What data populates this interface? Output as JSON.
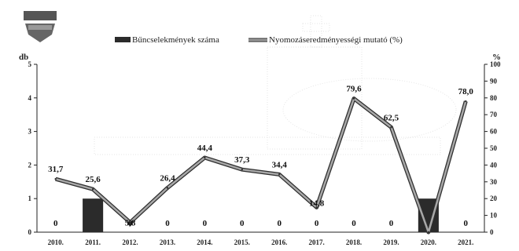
{
  "chart_data": {
    "type": "bar+line",
    "categories": [
      "2010.",
      "2011.",
      "2012.",
      "2013.",
      "2014.",
      "2015.",
      "2016.",
      "2017.",
      "2018.",
      "2019.",
      "2020.",
      "2021."
    ],
    "series": [
      {
        "name": "Bűncselekmények száma",
        "type": "bar",
        "axis": "left",
        "values": [
          0,
          1,
          0,
          0,
          0,
          0,
          0,
          0,
          0,
          0,
          1,
          0
        ],
        "labels": [
          "0",
          "",
          "0",
          "0",
          "0",
          "0",
          "0",
          "0",
          "0",
          "0",
          "",
          "0"
        ]
      },
      {
        "name": "Nyomozáseredményességi mutató (%)",
        "type": "line",
        "axis": "right",
        "values": [
          31.7,
          25.6,
          5.8,
          26.4,
          44.4,
          37.3,
          34.4,
          14.8,
          79.6,
          62.5,
          0,
          78.0
        ],
        "labels": [
          "31,7",
          "25,6",
          "5,8",
          "26,4",
          "44,4",
          "37,3",
          "34,4",
          "14,8",
          "79,6",
          "62,5",
          "",
          "78,0"
        ]
      }
    ],
    "left_axis": {
      "unit": "db",
      "ylim": [
        0,
        5
      ],
      "ticks": [
        "0",
        "1",
        "2",
        "3",
        "4",
        "5"
      ]
    },
    "right_axis": {
      "unit": "%",
      "ylim": [
        0,
        100
      ],
      "ticks": [
        "0",
        "10",
        "20",
        "30",
        "40",
        "50",
        "60",
        "70",
        "80",
        "90",
        "100"
      ]
    },
    "legend_position": "top",
    "grid": false,
    "colors": {
      "bar": "#2b2b2b",
      "line": "#6b6b6b",
      "line_edge": "#2e2e2e"
    }
  }
}
